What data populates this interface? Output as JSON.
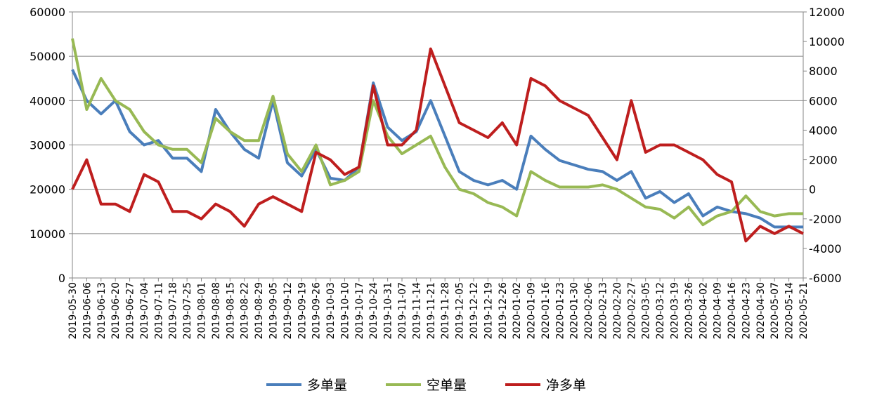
{
  "chart_data": {
    "type": "line",
    "categories": [
      "2019-05-30",
      "2019-06-06",
      "2019-06-13",
      "2019-06-20",
      "2019-06-27",
      "2019-07-04",
      "2019-07-11",
      "2019-07-18",
      "2019-07-25",
      "2019-08-01",
      "2019-08-08",
      "2019-08-15",
      "2019-08-22",
      "2019-08-29",
      "2019-09-05",
      "2019-09-12",
      "2019-09-19",
      "2019-09-26",
      "2019-10-03",
      "2019-10-10",
      "2019-10-17",
      "2019-10-24",
      "2019-10-31",
      "2019-11-07",
      "2019-11-14",
      "2019-11-21",
      "2019-11-28",
      "2019-12-05",
      "2019-12-12",
      "2019-12-19",
      "2019-12-26",
      "2020-01-02",
      "2020-01-09",
      "2020-01-16",
      "2020-01-23",
      "2020-01-30",
      "2020-02-06",
      "2020-02-13",
      "2020-02-20",
      "2020-02-27",
      "2020-03-05",
      "2020-03-12",
      "2020-03-19",
      "2020-03-26",
      "2020-04-02",
      "2020-04-09",
      "2020-04-16",
      "2020-04-23",
      "2020-04-30",
      "2020-05-07",
      "2020-05-14",
      "2020-05-21"
    ],
    "series": [
      {
        "name": "多单量",
        "color": "#4a7ebb",
        "values": [
          47000,
          40000,
          37000,
          40000,
          33000,
          30000,
          31000,
          27000,
          27000,
          24000,
          38000,
          33000,
          29000,
          27000,
          40000,
          26000,
          23000,
          29000,
          22500,
          22000,
          25000,
          44000,
          34000,
          31000,
          33000,
          40000,
          32000,
          24000,
          22000,
          21000,
          22000,
          20000,
          32000,
          29000,
          26500,
          25500,
          24500,
          24000,
          22000,
          24000,
          18000,
          19500,
          17000,
          19000,
          14000,
          16000,
          15000,
          14500,
          13500,
          11500,
          11500,
          11500
        ]
      },
      {
        "name": "空单量",
        "color": "#98b954",
        "values": [
          54000,
          38000,
          45000,
          40000,
          38000,
          33000,
          30000,
          29000,
          29000,
          26000,
          36000,
          33000,
          31000,
          31000,
          41000,
          28000,
          24000,
          30000,
          21000,
          22000,
          24000,
          40000,
          32000,
          28000,
          30000,
          32000,
          25000,
          20000,
          19000,
          17000,
          16000,
          14000,
          24000,
          22000,
          20500,
          20500,
          20500,
          21000,
          20000,
          18000,
          16000,
          15500,
          13500,
          16000,
          12000,
          14000,
          15000,
          18500,
          15000,
          14000,
          14500,
          14500
        ]
      },
      {
        "name": "净多单",
        "color": "#be1e1e",
        "axis": "y2",
        "values": [
          0,
          2000,
          -1000,
          -1000,
          -1500,
          1000,
          500,
          -1500,
          -1500,
          -2000,
          -1000,
          -1500,
          -2500,
          -1000,
          -500,
          -1000,
          -1500,
          2500,
          2000,
          1000,
          1500,
          7000,
          3000,
          3000,
          4000,
          9500,
          7000,
          4500,
          4000,
          3500,
          4500,
          3000,
          7500,
          7000,
          6000,
          5500,
          5000,
          3500,
          2000,
          6000,
          2500,
          3000,
          3000,
          2500,
          2000,
          1000,
          500,
          -3500,
          -2500,
          -3000,
          -2500,
          -3000
        ]
      }
    ],
    "ylim": [
      0,
      60000
    ],
    "yticks": [
      0,
      10000,
      20000,
      30000,
      40000,
      50000,
      60000
    ],
    "y2lim": [
      -6000,
      12000
    ],
    "y2ticks": [
      -6000,
      -4000,
      -2000,
      0,
      2000,
      4000,
      6000,
      8000,
      10000,
      12000
    ],
    "grid": true,
    "legend": "bottom"
  }
}
